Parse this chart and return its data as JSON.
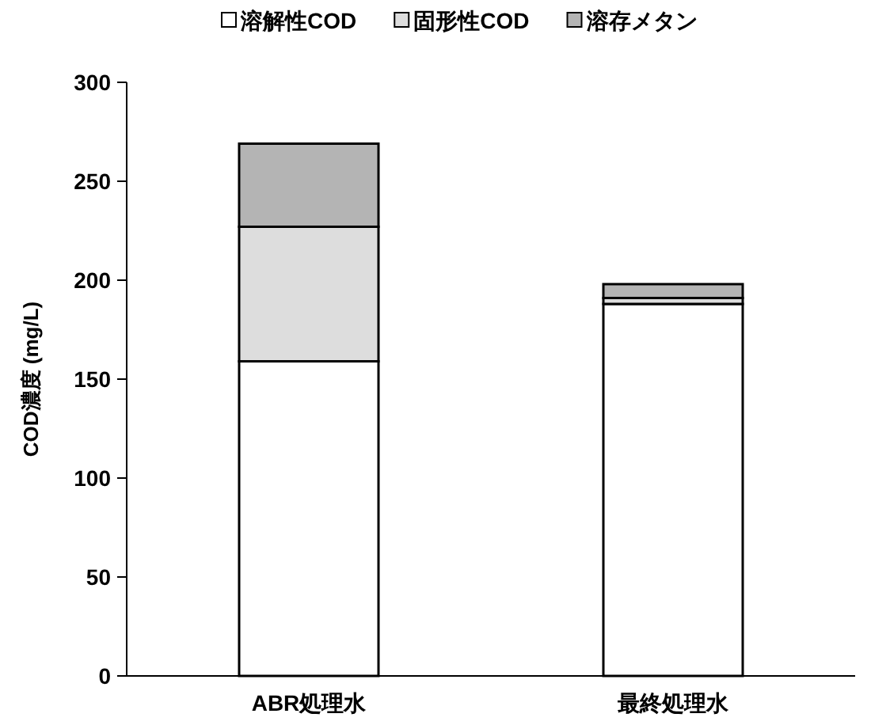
{
  "chart_data": {
    "type": "bar",
    "stacked": true,
    "ylabel": "COD濃度 (mg/L)",
    "categories": [
      "ABR処理水",
      "最終処理水"
    ],
    "series": [
      {
        "name": "溶解性COD",
        "color": "#ffffff",
        "values": [
          159,
          188
        ]
      },
      {
        "name": "固形性COD",
        "color": "#dddddd",
        "values": [
          68,
          3
        ]
      },
      {
        "name": "溶存メタン",
        "color": "#b4b4b4",
        "values": [
          42,
          7
        ]
      }
    ],
    "ylim": [
      0,
      300
    ],
    "yticks": [
      0,
      50,
      100,
      150,
      200,
      250,
      300
    ],
    "grid": false,
    "legend": "top"
  }
}
